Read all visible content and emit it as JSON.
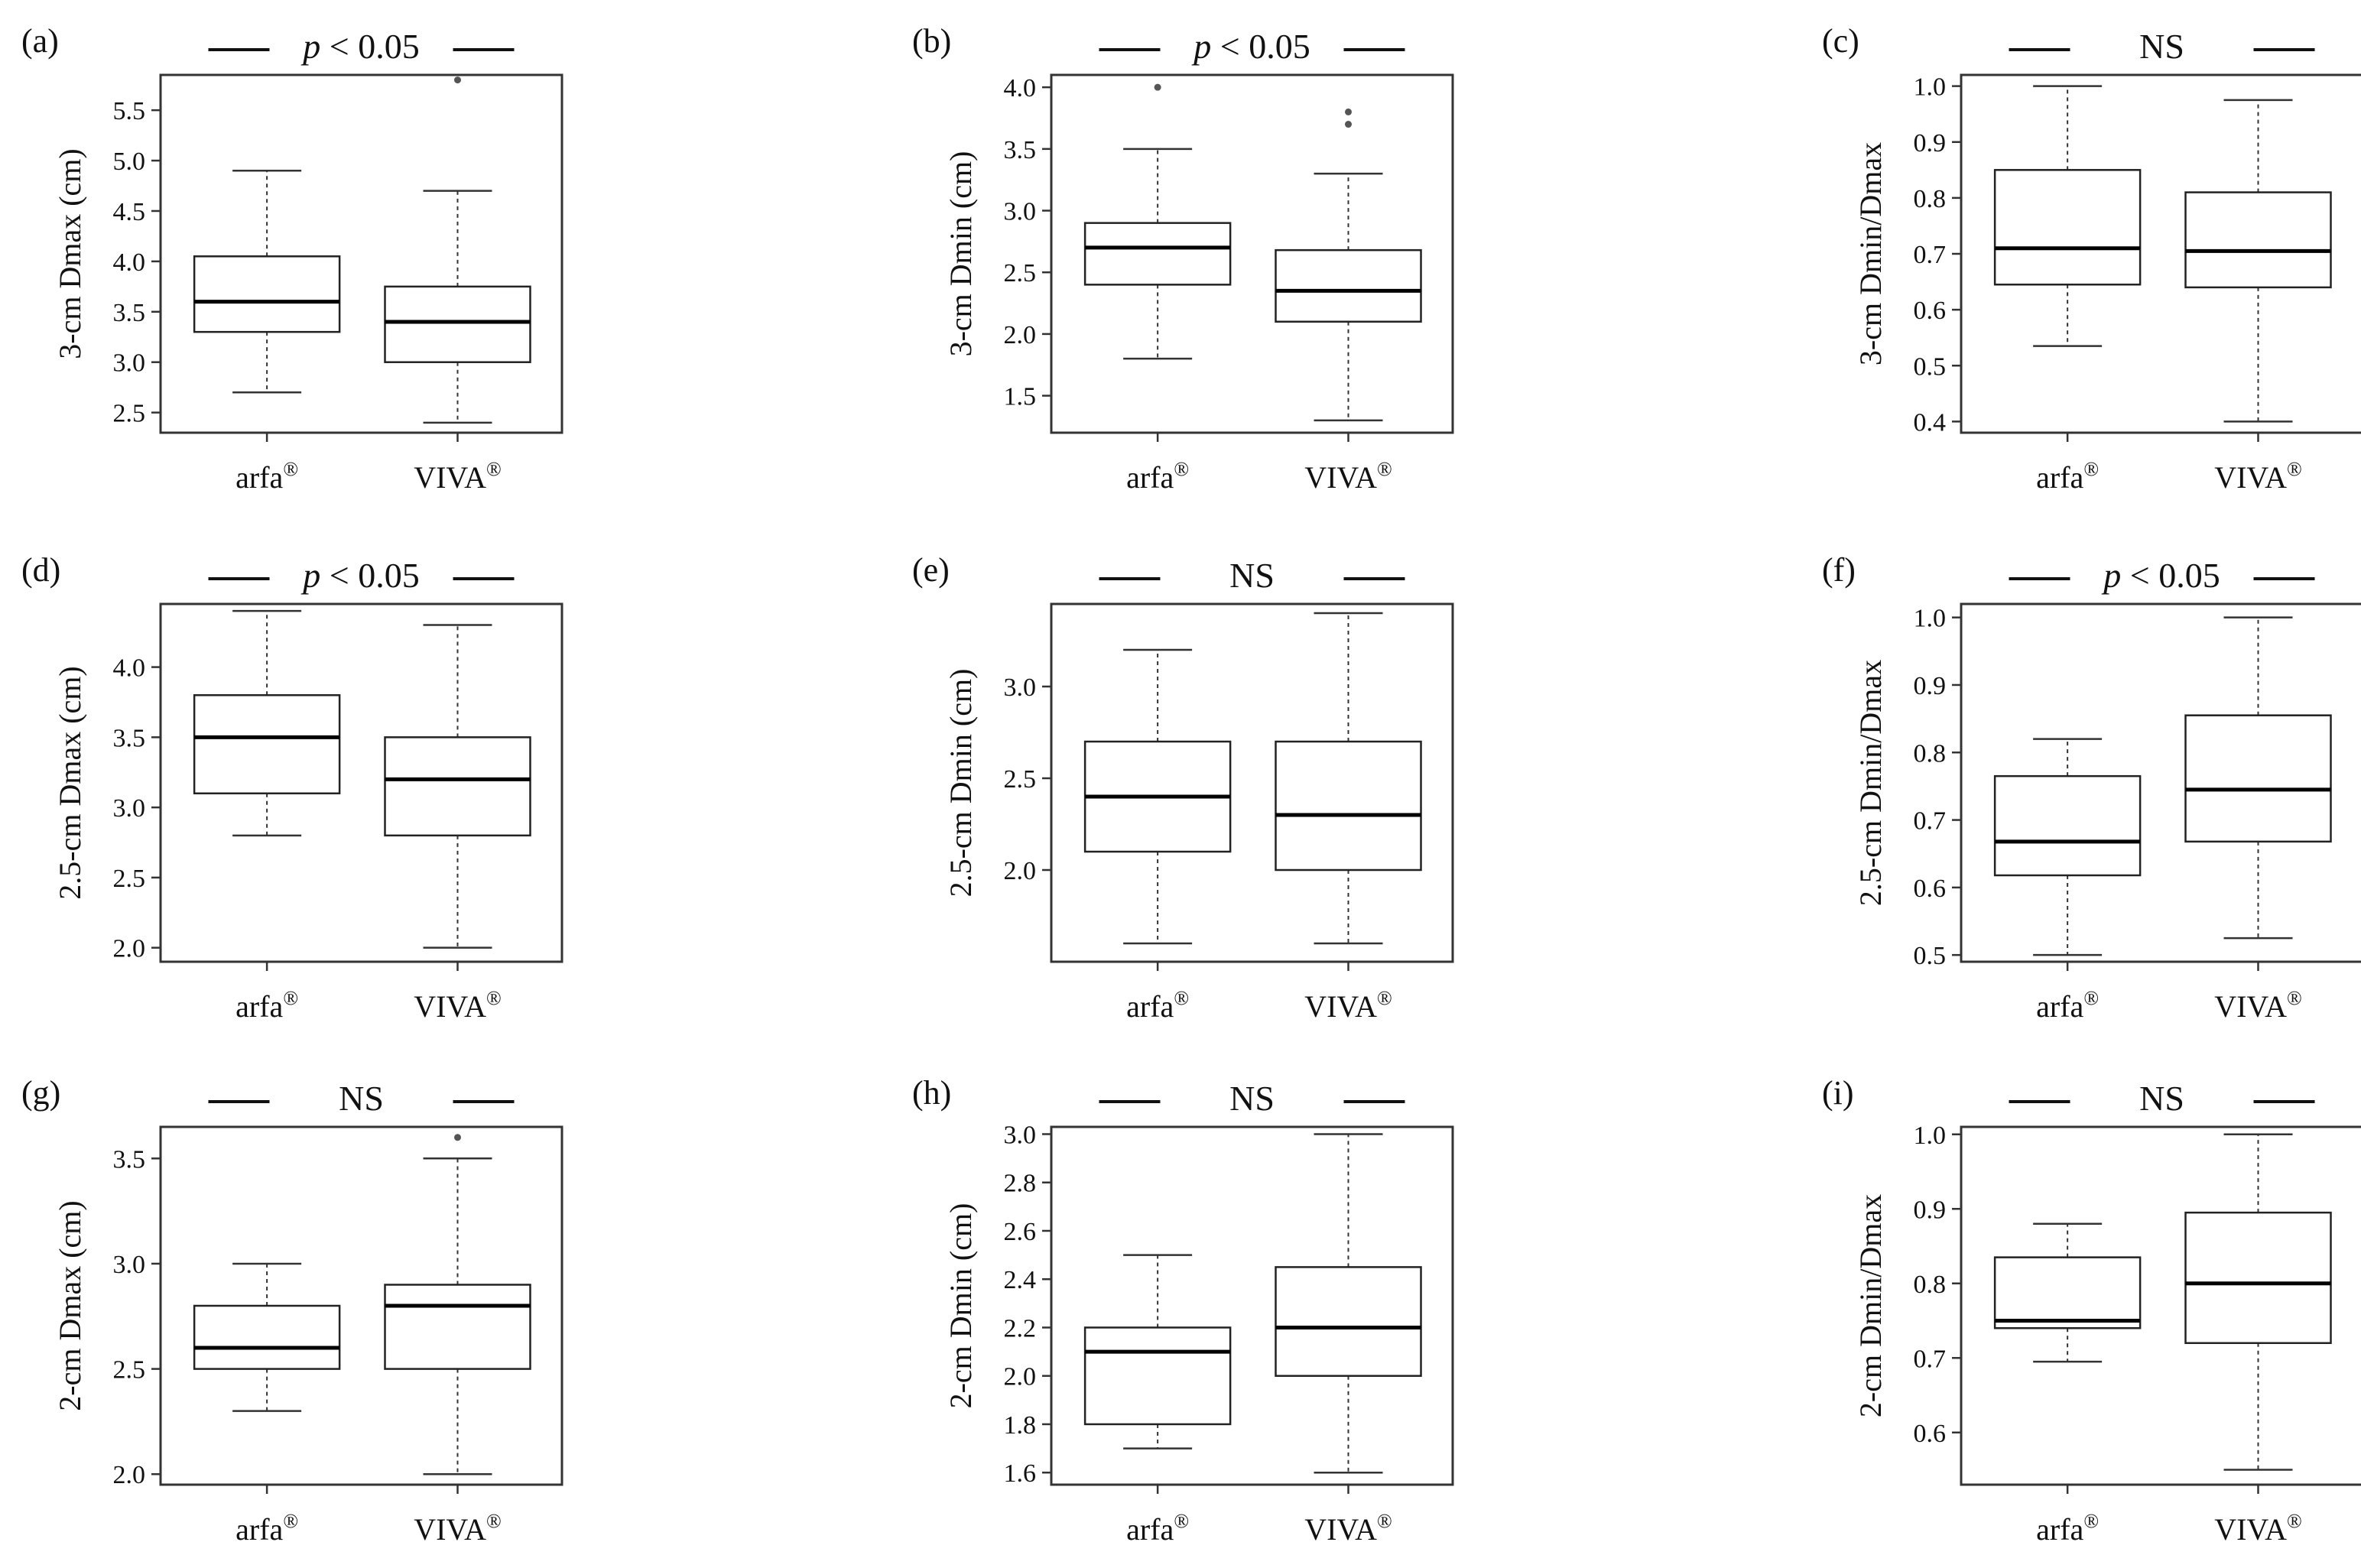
{
  "chart_data": [
    {
      "panel": "(a)",
      "type": "box",
      "ylabel": "3-cm Dmax (cm)",
      "significance": {
        "p": "p",
        "rest": " < 0.05"
      },
      "ylim": [
        2.3,
        5.85
      ],
      "yticks": [
        "2.5",
        "3.0",
        "3.5",
        "4.0",
        "4.5",
        "5.0",
        "5.5"
      ],
      "categories": [
        {
          "name": "arfa",
          "sup": "®"
        },
        {
          "name": "VIVA",
          "sup": "®"
        }
      ],
      "boxes": [
        {
          "min": 2.7,
          "q1": 3.3,
          "median": 3.6,
          "q3": 4.05,
          "max": 4.9,
          "outliers": []
        },
        {
          "min": 2.4,
          "q1": 3.0,
          "median": 3.4,
          "q3": 3.75,
          "max": 4.7,
          "outliers": [
            5.8
          ]
        }
      ]
    },
    {
      "panel": "(b)",
      "type": "box",
      "ylabel": "3-cm Dmin (cm)",
      "significance": {
        "p": "p",
        "rest": " < 0.05"
      },
      "ylim": [
        1.2,
        4.1
      ],
      "yticks": [
        "1.5",
        "2.0",
        "2.5",
        "3.0",
        "3.5",
        "4.0"
      ],
      "categories": [
        {
          "name": "arfa",
          "sup": "®"
        },
        {
          "name": "VIVA",
          "sup": "®"
        }
      ],
      "boxes": [
        {
          "min": 1.8,
          "q1": 2.4,
          "median": 2.7,
          "q3": 2.9,
          "max": 3.5,
          "outliers": [
            4.0
          ]
        },
        {
          "min": 1.3,
          "q1": 2.1,
          "median": 2.35,
          "q3": 2.68,
          "max": 3.3,
          "outliers": [
            3.7,
            3.8
          ]
        }
      ]
    },
    {
      "panel": "(c)",
      "type": "box",
      "ylabel": "3-cm Dmin/Dmax",
      "significance": {
        "p": "",
        "rest": "NS"
      },
      "ylim": [
        0.38,
        1.02
      ],
      "yticks": [
        "0.4",
        "0.5",
        "0.6",
        "0.7",
        "0.8",
        "0.9",
        "1.0"
      ],
      "categories": [
        {
          "name": "arfa",
          "sup": "®"
        },
        {
          "name": "VIVA",
          "sup": "®"
        }
      ],
      "boxes": [
        {
          "min": 0.535,
          "q1": 0.645,
          "median": 0.71,
          "q3": 0.85,
          "max": 1.0,
          "outliers": []
        },
        {
          "min": 0.4,
          "q1": 0.64,
          "median": 0.705,
          "q3": 0.81,
          "max": 0.975,
          "outliers": []
        }
      ]
    },
    {
      "panel": "(d)",
      "type": "box",
      "ylabel": "2.5-cm Dmax (cm)",
      "significance": {
        "p": "p",
        "rest": " < 0.05"
      },
      "ylim": [
        1.9,
        4.45
      ],
      "yticks": [
        "2.0",
        "2.5",
        "3.0",
        "3.5",
        "4.0"
      ],
      "categories": [
        {
          "name": "arfa",
          "sup": "®"
        },
        {
          "name": "VIVA",
          "sup": "®"
        }
      ],
      "boxes": [
        {
          "min": 2.8,
          "q1": 3.1,
          "median": 3.5,
          "q3": 3.8,
          "max": 4.4,
          "outliers": []
        },
        {
          "min": 2.0,
          "q1": 2.8,
          "median": 3.2,
          "q3": 3.5,
          "max": 4.3,
          "outliers": []
        }
      ]
    },
    {
      "panel": "(e)",
      "type": "box",
      "ylabel": "2.5-cm Dmin (cm)",
      "significance": {
        "p": "",
        "rest": "NS"
      },
      "ylim": [
        1.5,
        3.45
      ],
      "yticks": [
        "2.0",
        "2.5",
        "3.0"
      ],
      "categories": [
        {
          "name": "arfa",
          "sup": "®"
        },
        {
          "name": "VIVA",
          "sup": "®"
        }
      ],
      "boxes": [
        {
          "min": 1.6,
          "q1": 2.1,
          "median": 2.4,
          "q3": 2.7,
          "max": 3.2,
          "outliers": []
        },
        {
          "min": 1.6,
          "q1": 2.0,
          "median": 2.3,
          "q3": 2.7,
          "max": 3.4,
          "outliers": []
        }
      ]
    },
    {
      "panel": "(f)",
      "type": "box",
      "ylabel": "2.5-cm Dmin/Dmax",
      "significance": {
        "p": "p",
        "rest": " < 0.05"
      },
      "ylim": [
        0.49,
        1.02
      ],
      "yticks": [
        "0.5",
        "0.6",
        "0.7",
        "0.8",
        "0.9",
        "1.0"
      ],
      "categories": [
        {
          "name": "arfa",
          "sup": "®"
        },
        {
          "name": "VIVA",
          "sup": "®"
        }
      ],
      "boxes": [
        {
          "min": 0.5,
          "q1": 0.618,
          "median": 0.668,
          "q3": 0.765,
          "max": 0.82,
          "outliers": []
        },
        {
          "min": 0.525,
          "q1": 0.668,
          "median": 0.745,
          "q3": 0.855,
          "max": 1.0,
          "outliers": []
        }
      ]
    },
    {
      "panel": "(g)",
      "type": "box",
      "ylabel": "2-cm Dmax (cm)",
      "significance": {
        "p": "",
        "rest": "NS"
      },
      "ylim": [
        1.95,
        3.65
      ],
      "yticks": [
        "2.0",
        "2.5",
        "3.0",
        "3.5"
      ],
      "categories": [
        {
          "name": "arfa",
          "sup": "®"
        },
        {
          "name": "VIVA",
          "sup": "®"
        }
      ],
      "boxes": [
        {
          "min": 2.3,
          "q1": 2.5,
          "median": 2.6,
          "q3": 2.8,
          "max": 3.0,
          "outliers": []
        },
        {
          "min": 2.0,
          "q1": 2.5,
          "median": 2.8,
          "q3": 2.9,
          "max": 3.5,
          "outliers": [
            3.6
          ]
        }
      ]
    },
    {
      "panel": "(h)",
      "type": "box",
      "ylabel": "2-cm Dmin (cm)",
      "significance": {
        "p": "",
        "rest": "NS"
      },
      "ylim": [
        1.55,
        3.03
      ],
      "yticks": [
        "1.6",
        "1.8",
        "2.0",
        "2.2",
        "2.4",
        "2.6",
        "2.8",
        "3.0"
      ],
      "categories": [
        {
          "name": "arfa",
          "sup": "®"
        },
        {
          "name": "VIVA",
          "sup": "®"
        }
      ],
      "boxes": [
        {
          "min": 1.7,
          "q1": 1.8,
          "median": 2.1,
          "q3": 2.2,
          "max": 2.5,
          "outliers": []
        },
        {
          "min": 1.6,
          "q1": 2.0,
          "median": 2.2,
          "q3": 2.45,
          "max": 3.0,
          "outliers": []
        }
      ]
    },
    {
      "panel": "(i)",
      "type": "box",
      "ylabel": "2-cm Dmin/Dmax",
      "significance": {
        "p": "",
        "rest": "NS"
      },
      "ylim": [
        0.53,
        1.01
      ],
      "yticks": [
        "0.6",
        "0.7",
        "0.8",
        "0.9",
        "1.0"
      ],
      "categories": [
        {
          "name": "arfa",
          "sup": "®"
        },
        {
          "name": "VIVA",
          "sup": "®"
        }
      ],
      "boxes": [
        {
          "min": 0.695,
          "q1": 0.74,
          "median": 0.75,
          "q3": 0.835,
          "max": 0.88,
          "outliers": []
        },
        {
          "min": 0.55,
          "q1": 0.72,
          "median": 0.8,
          "q3": 0.895,
          "max": 1.0,
          "outliers": []
        }
      ]
    }
  ]
}
